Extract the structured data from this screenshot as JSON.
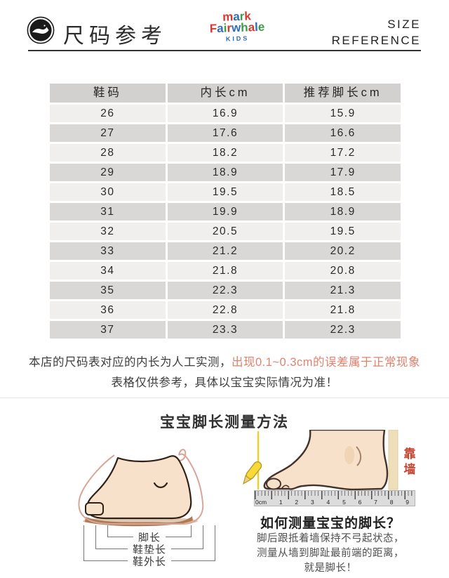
{
  "header": {
    "badge_icon": "whale-stamp",
    "title": "尺码参考",
    "logo": {
      "line1": "mark",
      "line2": "Fairwhale",
      "line3": "KIDS",
      "palette": [
        "#d63a2f",
        "#2e6db4",
        "#3f9b48"
      ]
    },
    "subtitle_line1": "SIZE",
    "subtitle_line2": "REFERENCE"
  },
  "size_table": {
    "columns": [
      "鞋码",
      "内长cm",
      "推荐脚长cm"
    ],
    "rows": [
      {
        "size": "26",
        "inner": "16.9",
        "foot": "15.9"
      },
      {
        "size": "27",
        "inner": "17.6",
        "foot": "16.6"
      },
      {
        "size": "28",
        "inner": "18.2",
        "foot": "17.2"
      },
      {
        "size": "29",
        "inner": "18.9",
        "foot": "17.9"
      },
      {
        "size": "30",
        "inner": "19.5",
        "foot": "18.5"
      },
      {
        "size": "31",
        "inner": "19.9",
        "foot": "18.9"
      },
      {
        "size": "32",
        "inner": "20.5",
        "foot": "19.5"
      },
      {
        "size": "33",
        "inner": "21.2",
        "foot": "20.2"
      },
      {
        "size": "34",
        "inner": "21.8",
        "foot": "20.8"
      },
      {
        "size": "35",
        "inner": "22.3",
        "foot": "21.3"
      },
      {
        "size": "36",
        "inner": "22.8",
        "foot": "21.8"
      },
      {
        "size": "37",
        "inner": "23.3",
        "foot": "22.3"
      }
    ]
  },
  "notice": {
    "line1_normal": "本店的尺码表对应的内长为人工实测，",
    "line1_highlight": "出现0.1~0.3cm的误差属于正常现象",
    "line2": "表格仅供参考，具体以宝宝实际情况为准！",
    "highlight_color": "#e2826d"
  },
  "measure_section": {
    "heading": "宝宝脚长测量方法",
    "shoe_diagram_labels": [
      "脚长",
      "鞋垫长",
      "鞋外长"
    ],
    "wall_label": "靠墙",
    "ruler_labels": [
      "0cm",
      "1",
      "2",
      "3",
      "4",
      "5",
      "6",
      "7",
      "8",
      "9"
    ],
    "how_to": {
      "title": "如何测量宝宝的脚长？",
      "line1": "脚后跟抵着墙保持不弓起状态，",
      "line2": "测量从墙到脚趾最前端的距离，",
      "line3": "就是脚长！"
    }
  },
  "colors": {
    "table_header_bg": "#d2d1cf",
    "table_row_light": "#f0efed",
    "table_row_dark": "#d9d8d6",
    "highlight_red": "#e2826d",
    "wall_label_red": "#c54532",
    "skin": "#f8e1ca",
    "pencil_yellow": "#f3d02c"
  }
}
